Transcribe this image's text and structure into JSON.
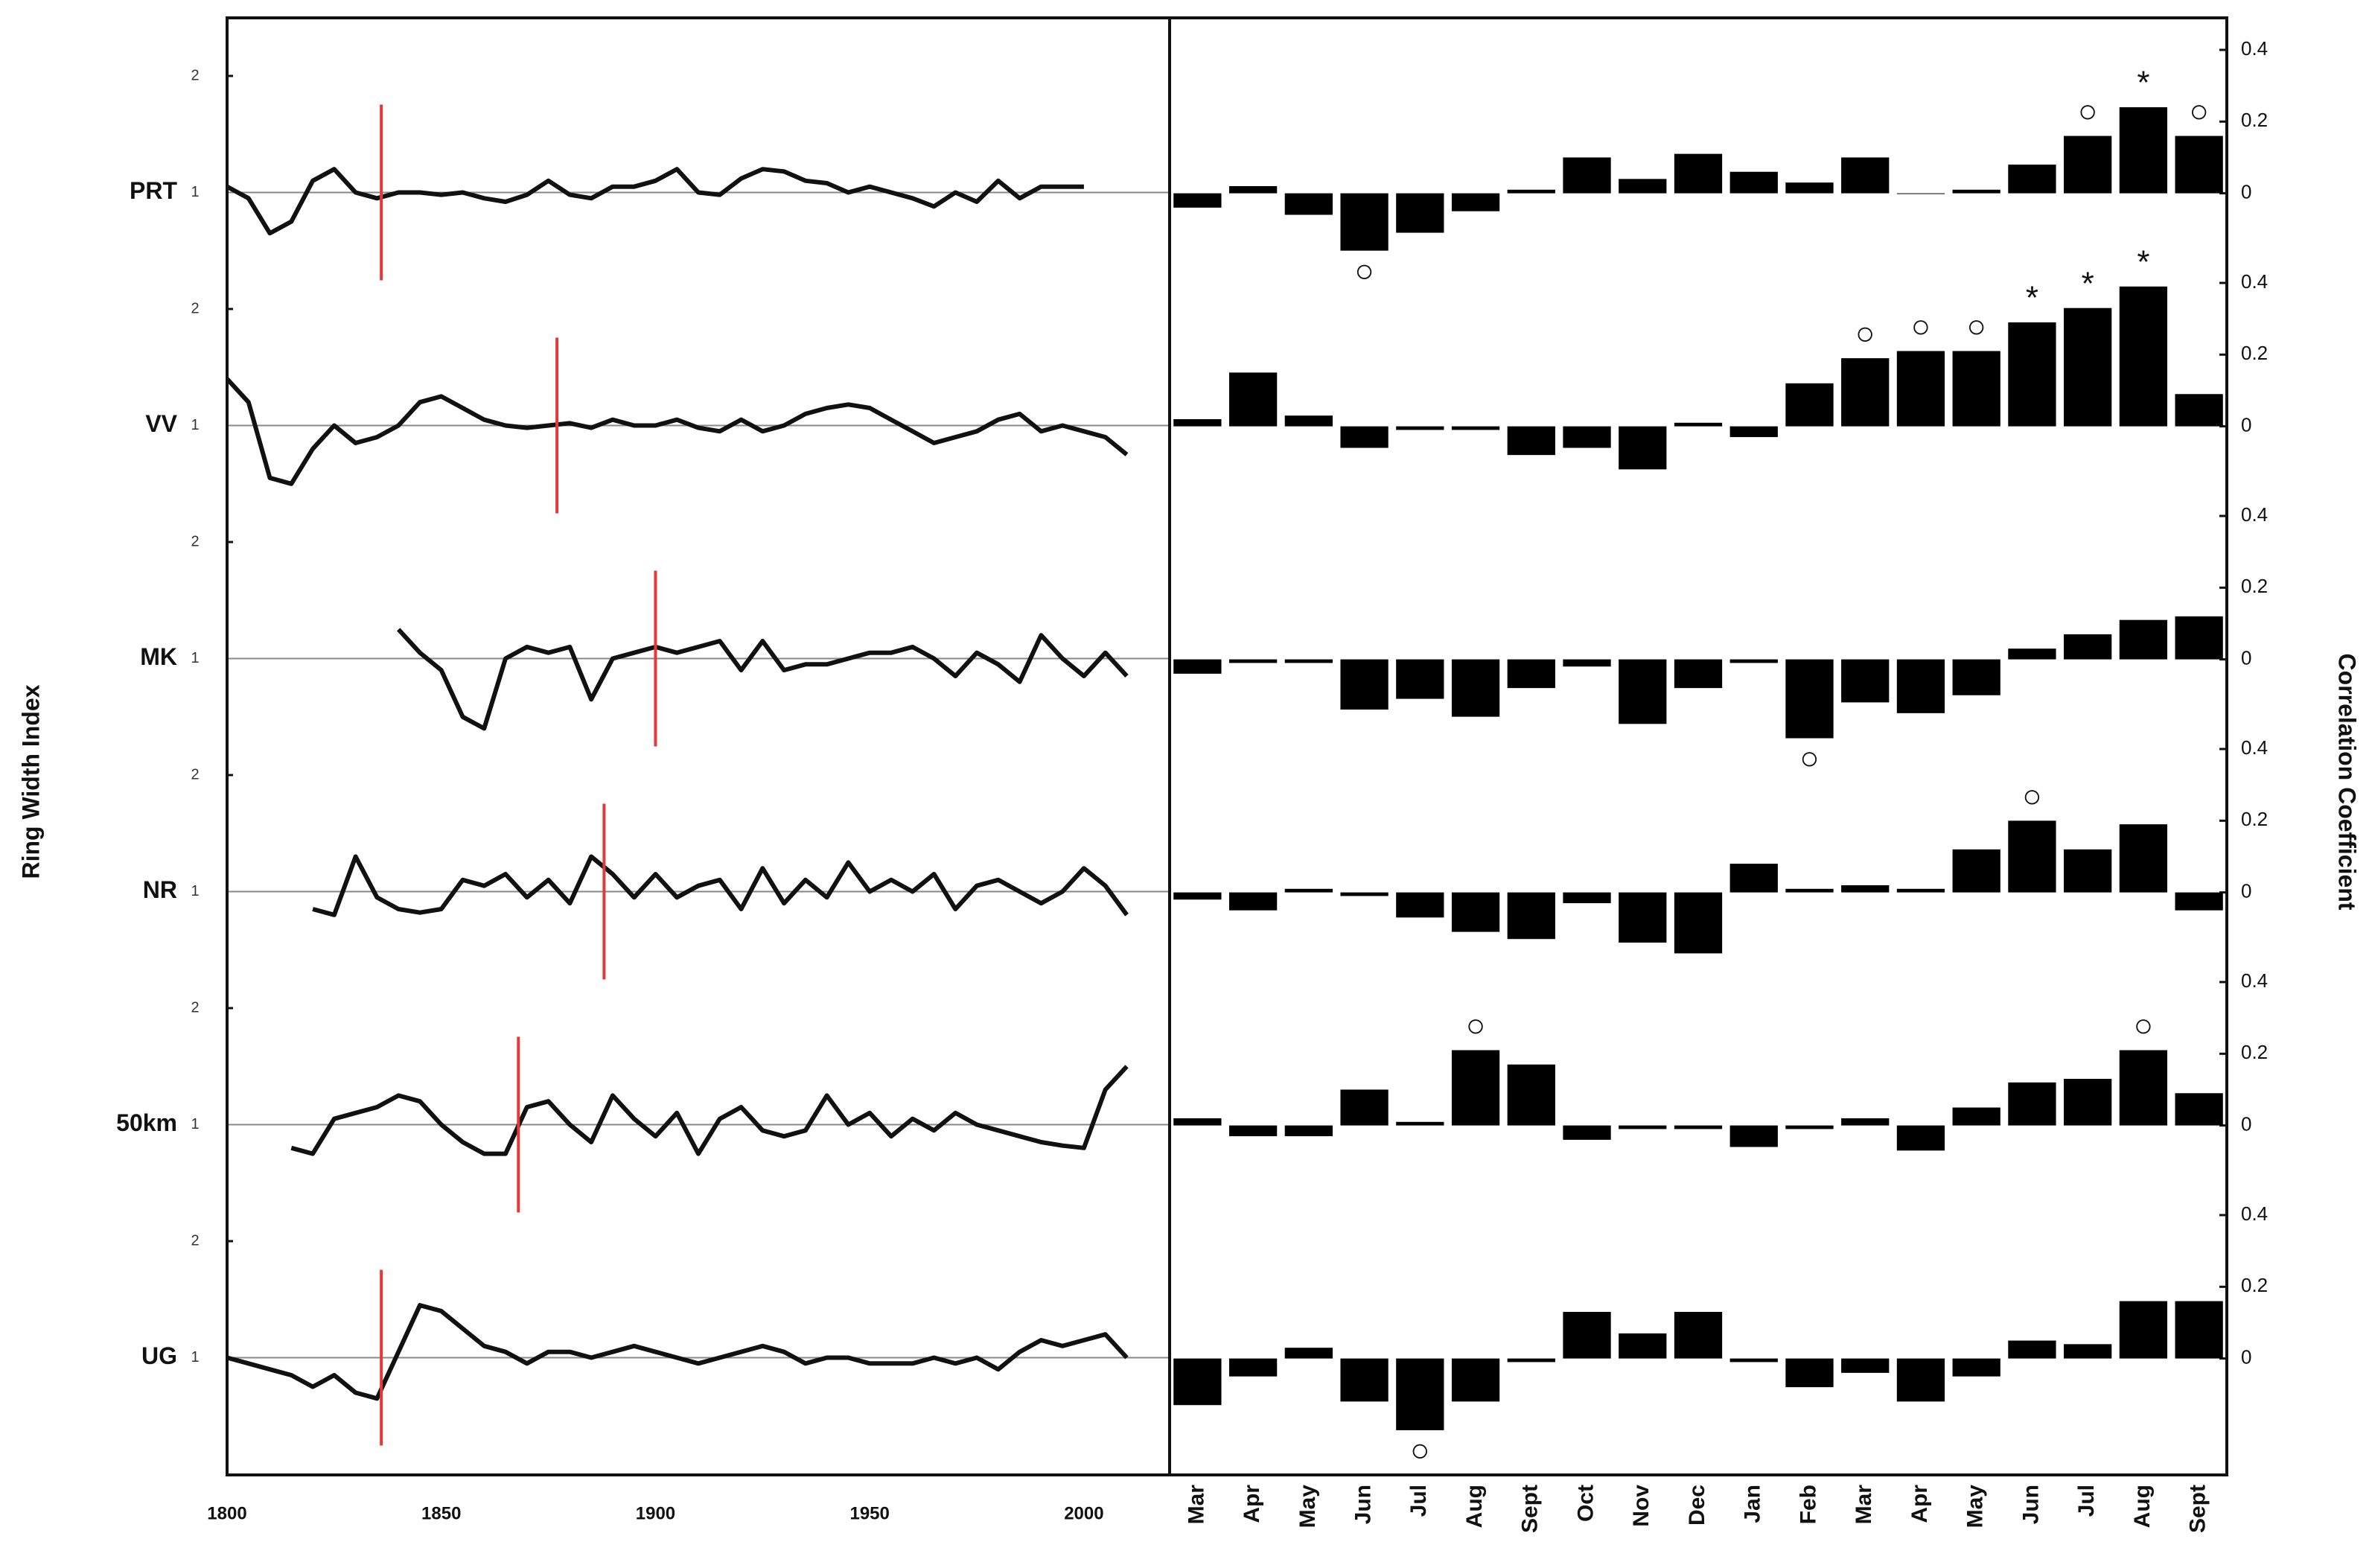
{
  "chart_data": [
    {
      "type": "line",
      "ylabel": "Ring Width Index",
      "color": "#111111",
      "break_color": "#e03a3a",
      "x": [
        1800,
        1805,
        1810,
        1815,
        1820,
        1825,
        1830,
        1835,
        1840,
        1845,
        1850,
        1855,
        1860,
        1865,
        1870,
        1875,
        1880,
        1885,
        1890,
        1895,
        1900,
        1905,
        1910,
        1915,
        1920,
        1925,
        1930,
        1935,
        1940,
        1945,
        1950,
        1955,
        1960,
        1965,
        1970,
        1975,
        1980,
        1985,
        1990,
        1995,
        2000,
        2005,
        2010
      ],
      "xlim": [
        1800,
        2020
      ],
      "xticks": [
        1800,
        1850,
        1900,
        1950,
        2000
      ],
      "ylim": [
        0,
        2
      ],
      "yticks": [
        1,
        2
      ],
      "series": [
        {
          "name": "PRT",
          "breakpoint": 1836,
          "values": [
            1.05,
            0.95,
            0.65,
            0.75,
            1.1,
            1.2,
            1.0,
            0.95,
            1.0,
            1.0,
            0.98,
            1.0,
            0.95,
            0.92,
            0.98,
            1.1,
            0.98,
            0.95,
            1.05,
            1.05,
            1.1,
            1.2,
            1.0,
            0.98,
            1.12,
            1.2,
            1.18,
            1.1,
            1.08,
            1.0,
            1.05,
            1.0,
            0.95,
            0.88,
            1.0,
            0.92,
            1.1,
            0.95,
            1.05,
            1.05,
            1.05,
            null,
            null
          ]
        },
        {
          "name": "VV",
          "breakpoint": 1877,
          "values": [
            1.4,
            1.2,
            0.55,
            0.5,
            0.8,
            1.0,
            0.85,
            0.9,
            1.0,
            1.2,
            1.25,
            1.15,
            1.05,
            1.0,
            0.98,
            1.0,
            1.02,
            0.98,
            1.05,
            1.0,
            1.0,
            1.05,
            0.98,
            0.95,
            1.05,
            0.95,
            1.0,
            1.1,
            1.15,
            1.18,
            1.15,
            1.05,
            0.95,
            0.85,
            0.9,
            0.95,
            1.05,
            1.1,
            0.95,
            1.0,
            0.95,
            0.9,
            0.75
          ]
        },
        {
          "name": "MK",
          "breakpoint": 1900,
          "values": [
            null,
            null,
            null,
            null,
            null,
            null,
            null,
            null,
            1.25,
            1.05,
            0.9,
            0.5,
            0.4,
            1.0,
            1.1,
            1.05,
            1.1,
            0.65,
            1.0,
            1.05,
            1.1,
            1.05,
            1.1,
            1.15,
            0.9,
            1.15,
            0.9,
            0.95,
            0.95,
            1.0,
            1.05,
            1.05,
            1.1,
            1.0,
            0.85,
            1.05,
            0.95,
            0.8,
            1.2,
            1.0,
            0.85,
            1.05,
            0.85
          ]
        },
        {
          "name": "NR",
          "breakpoint": 1888,
          "values": [
            null,
            null,
            null,
            null,
            0.85,
            0.8,
            1.3,
            0.95,
            0.85,
            0.82,
            0.85,
            1.1,
            1.05,
            1.15,
            0.95,
            1.1,
            0.9,
            1.3,
            1.15,
            0.95,
            1.15,
            0.95,
            1.05,
            1.1,
            0.85,
            1.2,
            0.9,
            1.1,
            0.95,
            1.25,
            1.0,
            1.1,
            1.0,
            1.15,
            0.85,
            1.05,
            1.1,
            1.0,
            0.9,
            1.0,
            1.2,
            1.05,
            0.8
          ]
        },
        {
          "name": "50km",
          "breakpoint": 1868,
          "values": [
            null,
            null,
            null,
            0.8,
            0.75,
            1.05,
            1.1,
            1.15,
            1.25,
            1.2,
            1.0,
            0.85,
            0.75,
            0.75,
            1.15,
            1.2,
            1.0,
            0.85,
            1.25,
            1.05,
            0.9,
            1.1,
            0.75,
            1.05,
            1.15,
            0.95,
            0.9,
            0.95,
            1.25,
            1.0,
            1.1,
            0.9,
            1.05,
            0.95,
            1.1,
            1.0,
            0.95,
            0.9,
            0.85,
            0.82,
            0.8,
            1.3,
            1.5
          ]
        },
        {
          "name": "UG",
          "breakpoint": 1836,
          "values": [
            1.0,
            0.95,
            0.9,
            0.85,
            0.75,
            0.85,
            0.7,
            0.65,
            1.05,
            1.45,
            1.4,
            1.25,
            1.1,
            1.05,
            0.95,
            1.05,
            1.05,
            1.0,
            1.05,
            1.1,
            1.05,
            1.0,
            0.95,
            1.0,
            1.05,
            1.1,
            1.05,
            0.95,
            1.0,
            1.0,
            0.95,
            0.95,
            0.95,
            1.0,
            0.95,
            1.0,
            0.9,
            1.05,
            1.15,
            1.1,
            1.15,
            1.2,
            1.0
          ]
        }
      ]
    },
    {
      "type": "bar",
      "ylabel": "Correlation  Coefficient",
      "color": "#000000",
      "categories": [
        "Mar",
        "Apr",
        "May",
        "Jun",
        "Jul",
        "Aug",
        "Sept",
        "Oct",
        "Nov",
        "Dec",
        "Jan",
        "Feb",
        "Mar",
        "Apr",
        "May",
        "Jun",
        "Jul",
        "Aug",
        "Sept"
      ],
      "ylim": [
        -0.25,
        0.4
      ],
      "yticks": [
        0,
        0.2,
        0.4
      ],
      "series": [
        {
          "values": [
            -0.04,
            0.02,
            -0.06,
            -0.16,
            -0.11,
            -0.05,
            0.01,
            0.1,
            0.04,
            0.11,
            0.06,
            0.03,
            0.1,
            0,
            0.01,
            0.08,
            0.16,
            0.24,
            0.16
          ],
          "signif": [
            null,
            null,
            null,
            "○",
            null,
            null,
            null,
            null,
            null,
            null,
            null,
            null,
            null,
            null,
            null,
            null,
            "○",
            "*",
            "○"
          ]
        },
        {
          "values": [
            0.02,
            0.15,
            0.03,
            -0.06,
            -0.01,
            -0.01,
            -0.08,
            -0.06,
            -0.12,
            0.01,
            -0.03,
            0.12,
            0.19,
            0.21,
            0.21,
            0.29,
            0.33,
            0.39,
            0.09
          ],
          "signif": [
            null,
            null,
            null,
            null,
            null,
            null,
            null,
            null,
            null,
            null,
            null,
            null,
            "○",
            "○",
            "○",
            "*",
            "*",
            "*",
            null
          ]
        },
        {
          "values": [
            -0.04,
            -0.01,
            -0.01,
            -0.14,
            -0.11,
            -0.16,
            -0.08,
            -0.02,
            -0.18,
            -0.08,
            -0.01,
            -0.22,
            -0.12,
            -0.15,
            -0.1,
            0.03,
            0.07,
            0.11,
            0.12
          ],
          "signif": [
            null,
            null,
            null,
            null,
            null,
            null,
            null,
            null,
            null,
            null,
            null,
            "○",
            null,
            null,
            null,
            null,
            null,
            null,
            null
          ]
        },
        {
          "values": [
            -0.02,
            -0.05,
            0.01,
            -0.01,
            -0.07,
            -0.11,
            -0.13,
            -0.03,
            -0.14,
            -0.17,
            0.08,
            0.01,
            0.02,
            0.01,
            0.12,
            0.2,
            0.12,
            0.19,
            -0.05
          ],
          "signif": [
            null,
            null,
            null,
            null,
            null,
            null,
            null,
            null,
            null,
            null,
            null,
            null,
            null,
            null,
            null,
            "○",
            null,
            null,
            null
          ]
        },
        {
          "values": [
            0.02,
            -0.03,
            -0.03,
            0.1,
            0.01,
            0.21,
            0.17,
            -0.04,
            -0.01,
            -0.01,
            -0.06,
            -0.01,
            0.02,
            -0.07,
            0.05,
            0.12,
            0.13,
            0.21,
            0.09
          ],
          "signif": [
            null,
            null,
            null,
            null,
            null,
            "○",
            null,
            null,
            null,
            null,
            null,
            null,
            null,
            null,
            null,
            null,
            null,
            "○",
            null
          ]
        },
        {
          "values": [
            -0.13,
            -0.05,
            0.03,
            -0.12,
            -0.2,
            -0.12,
            -0.01,
            0.13,
            0.07,
            0.13,
            -0.01,
            -0.08,
            -0.04,
            -0.12,
            -0.05,
            0.05,
            0.04,
            0.16,
            0.16
          ],
          "signif": [
            null,
            null,
            null,
            null,
            "○",
            null,
            null,
            null,
            null,
            null,
            null,
            null,
            null,
            null,
            null,
            null,
            null,
            null,
            null
          ]
        }
      ]
    }
  ]
}
